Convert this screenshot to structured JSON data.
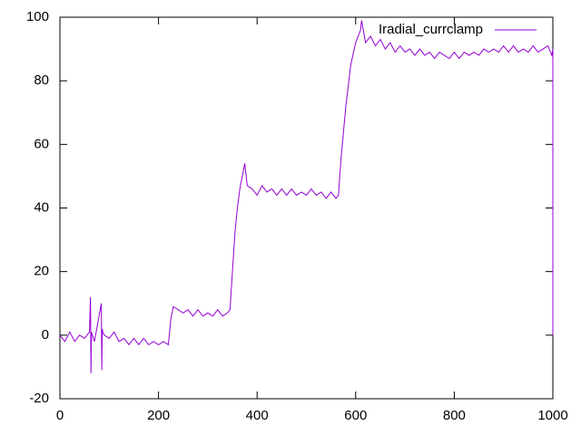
{
  "chart_data": {
    "type": "line",
    "x": [
      0,
      10,
      20,
      30,
      40,
      50,
      60,
      62,
      63,
      64,
      70,
      84,
      85,
      86,
      87,
      90,
      100,
      110,
      120,
      130,
      140,
      150,
      160,
      170,
      180,
      190,
      200,
      210,
      220,
      225,
      230,
      240,
      250,
      260,
      270,
      280,
      290,
      300,
      310,
      320,
      330,
      340,
      345,
      350,
      355,
      360,
      365,
      370,
      375,
      380,
      390,
      400,
      410,
      420,
      430,
      440,
      450,
      460,
      470,
      480,
      490,
      500,
      510,
      520,
      530,
      540,
      550,
      560,
      565,
      570,
      580,
      590,
      600,
      610,
      612,
      620,
      630,
      640,
      650,
      660,
      670,
      680,
      690,
      700,
      710,
      720,
      730,
      740,
      750,
      760,
      770,
      780,
      790,
      800,
      810,
      820,
      830,
      840,
      850,
      860,
      870,
      880,
      890,
      900,
      910,
      920,
      930,
      940,
      950,
      960,
      970,
      980,
      990,
      998,
      1000,
      1000
    ],
    "series": [
      {
        "name": "Iradial_currclamp",
        "color": "#9400d3",
        "values": [
          0,
          -2,
          1,
          -2,
          0,
          -1,
          1,
          12,
          -12,
          1,
          -2,
          10,
          -11,
          2,
          1,
          0,
          -1,
          1,
          -2,
          -1,
          -3,
          -1,
          -3,
          -1,
          -3,
          -2,
          -3,
          -2,
          -3,
          5,
          9,
          8,
          7,
          8,
          6,
          8,
          6,
          7,
          6,
          8,
          6,
          7,
          8,
          20,
          32,
          40,
          46,
          50,
          54,
          47,
          46,
          44,
          47,
          45,
          46,
          44,
          46,
          44,
          46,
          44,
          45,
          44,
          46,
          44,
          45,
          43,
          45,
          43,
          44,
          55,
          72,
          85,
          92,
          96,
          99,
          92,
          94,
          91,
          93,
          90,
          92,
          89,
          91,
          89,
          90,
          88,
          90,
          88,
          89,
          87,
          89,
          88,
          87,
          89,
          87,
          89,
          88,
          89,
          88,
          90,
          89,
          90,
          89,
          91,
          89,
          91,
          89,
          90,
          89,
          91,
          89,
          90,
          91,
          88,
          90,
          0
        ]
      }
    ],
    "xlim": [
      0,
      1000
    ],
    "xticks": [
      0,
      200,
      400,
      600,
      800,
      1000
    ],
    "ylim": [
      -20,
      100
    ],
    "yticks": [
      -20,
      0,
      20,
      40,
      60,
      80,
      100
    ],
    "grid": false,
    "legend": "top-right"
  }
}
